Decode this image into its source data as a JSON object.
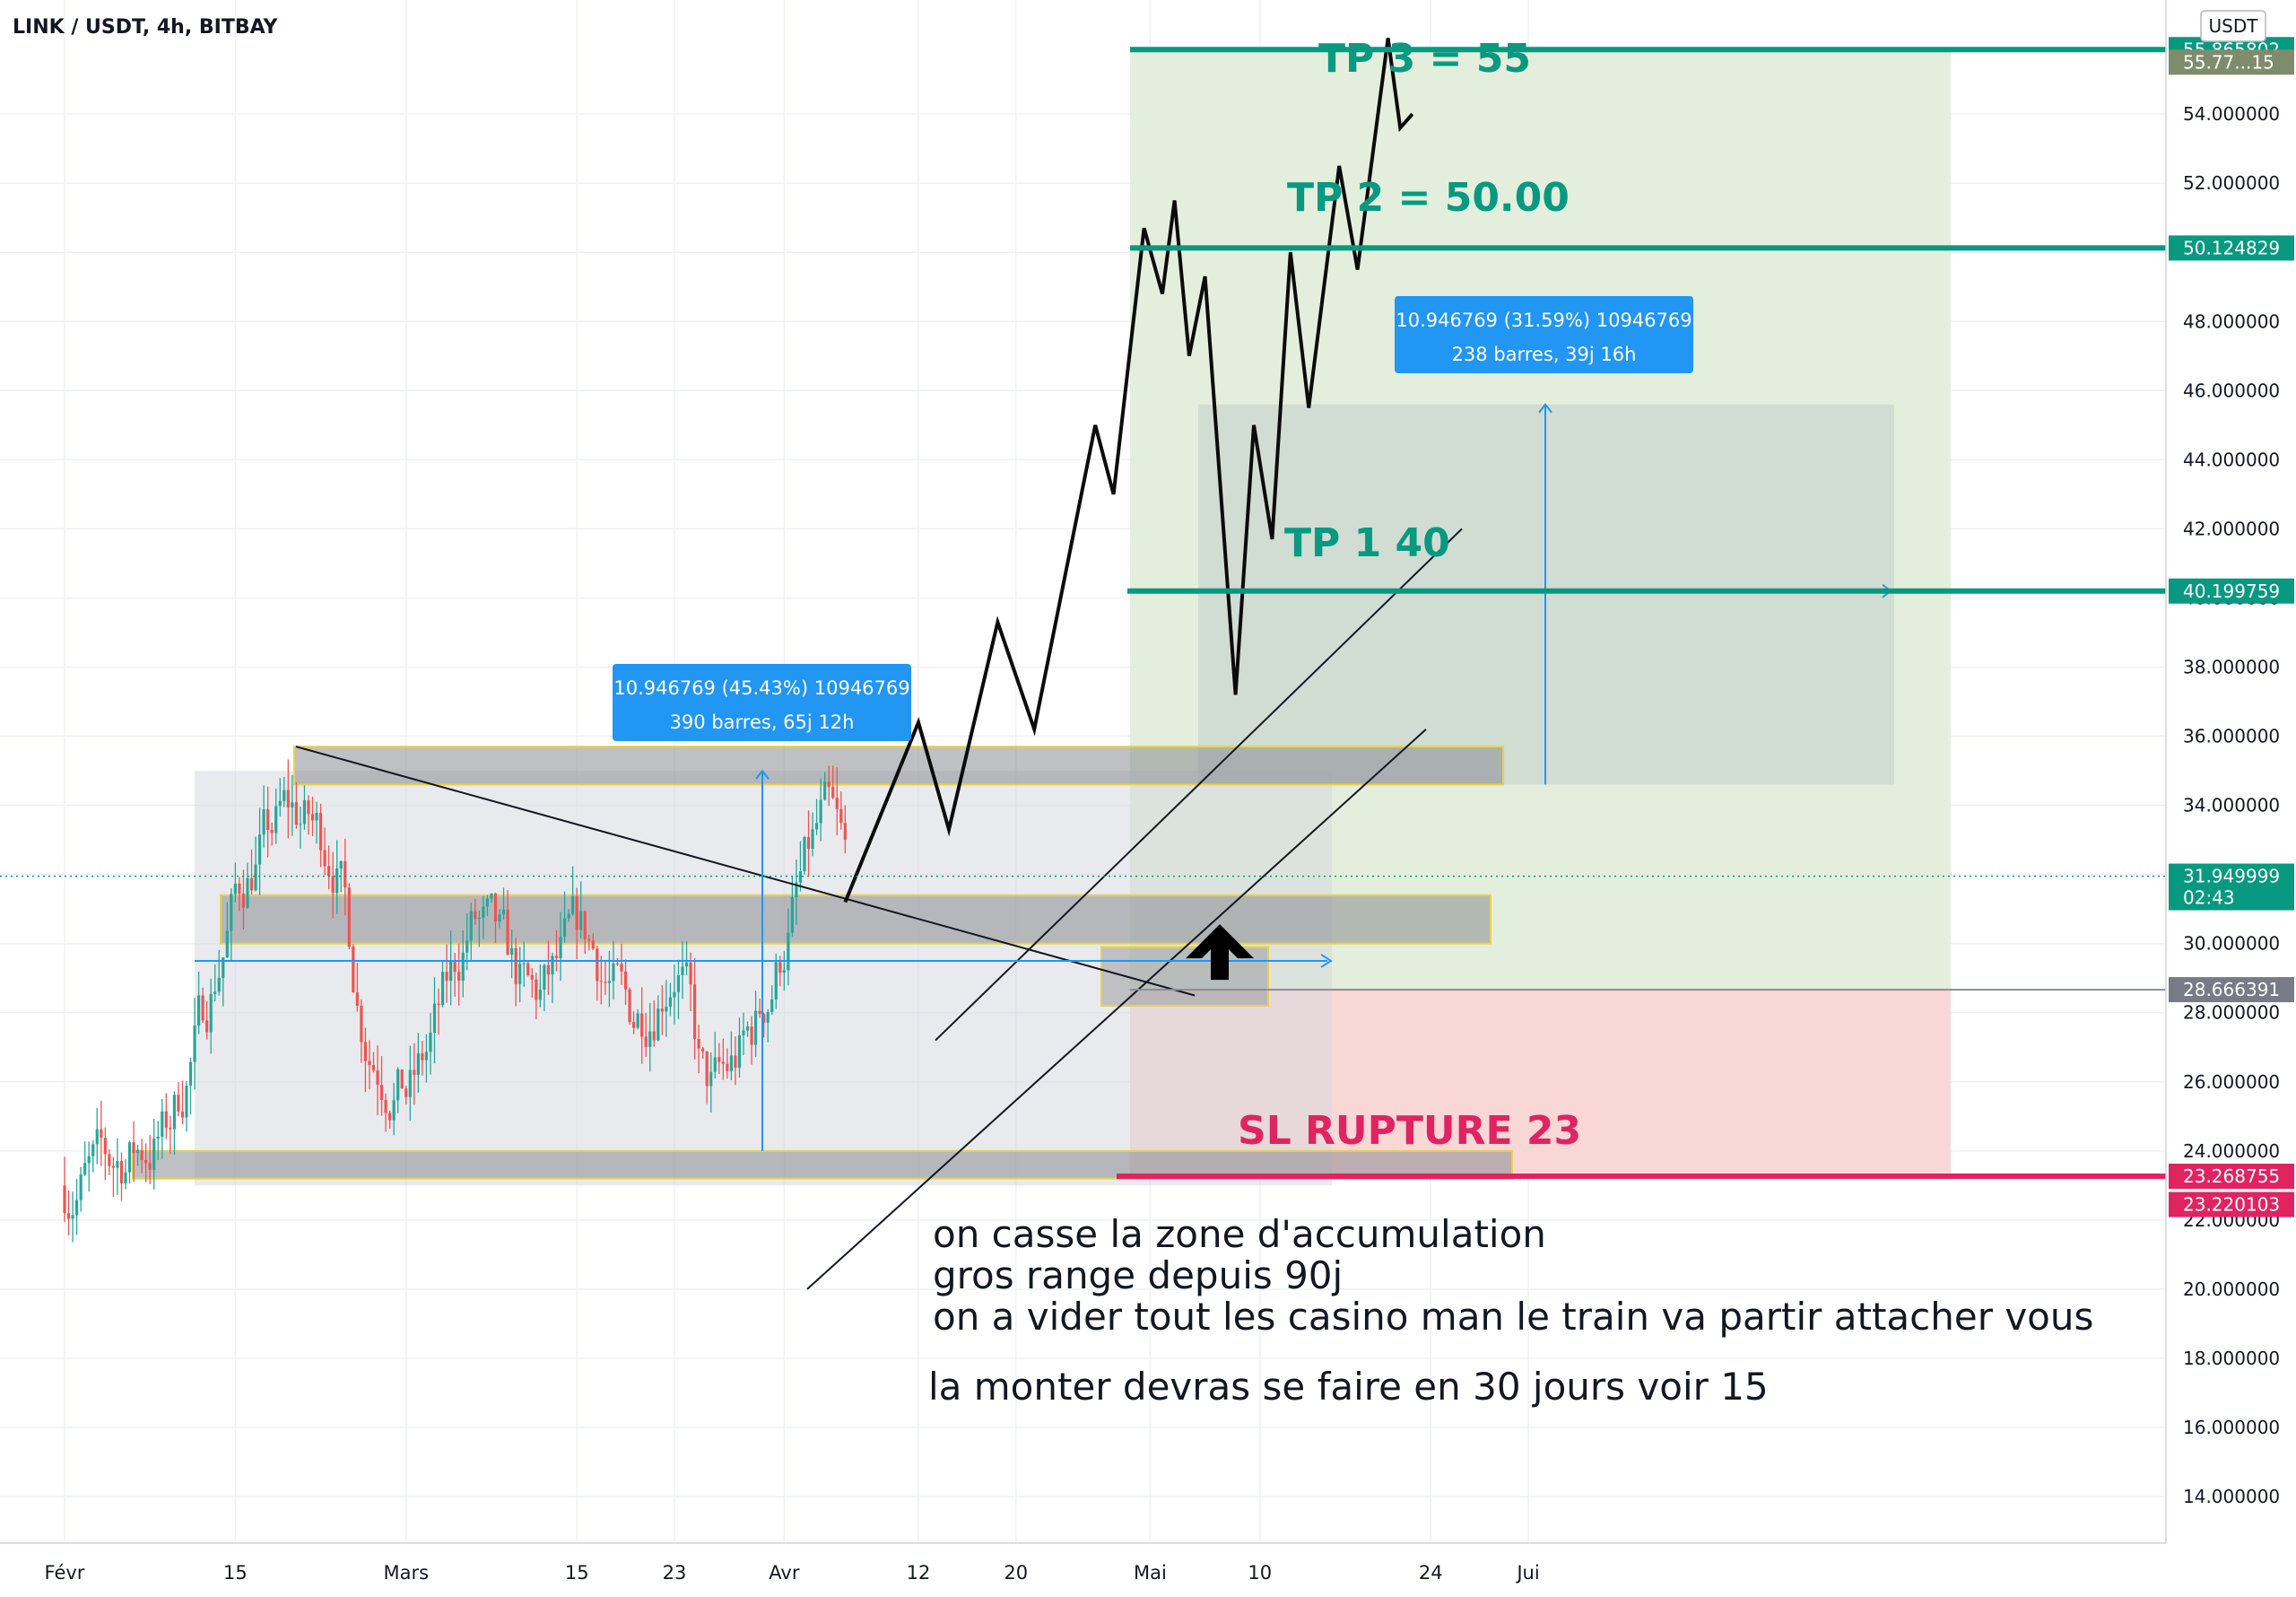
{
  "header": {
    "symbol_title": "LINK / USDT, 4h, BITBAY"
  },
  "currency_badge": "USDT",
  "chart_data": {
    "type": "candlestick",
    "title": "LINK / USDT, 4h, BITBAY",
    "y_axis": {
      "position": "right",
      "ylim": [
        12.6,
        57.3
      ],
      "ticks": [
        "14.000000",
        "16.000000",
        "18.000000",
        "20.000000",
        "22.000000",
        "24.000000",
        "26.000000",
        "28.000000",
        "30.000000",
        "32.000000",
        "34.000000",
        "36.000000",
        "38.000000",
        "40.000000",
        "42.000000",
        "44.000000",
        "46.000000",
        "48.000000",
        "50.000000",
        "52.000000",
        "54.000000"
      ]
    },
    "x_axis": {
      "ticks": [
        {
          "label": "Févr",
          "day": 0
        },
        {
          "label": "15",
          "day": 14
        },
        {
          "label": "Mars",
          "day": 28
        },
        {
          "label": "15",
          "day": 42
        },
        {
          "label": "23",
          "day": 50
        },
        {
          "label": "Avr",
          "day": 59
        },
        {
          "label": "12",
          "day": 70
        },
        {
          "label": "20",
          "day": 78
        },
        {
          "label": "Mai",
          "day": 89
        },
        {
          "label": "10",
          "day": 98
        },
        {
          "label": "24",
          "day": 112
        },
        {
          "label": "Jui",
          "day": 120
        }
      ]
    },
    "price_labels": [
      {
        "value": "55.865802",
        "price": 55.865802,
        "bg": "#089981"
      },
      {
        "value": "55.77...15",
        "price": 55.5,
        "bg": "#7f8c6c"
      },
      {
        "value": "50.124829",
        "price": 50.124829,
        "bg": "#089981"
      },
      {
        "value": "40.199759",
        "price": 40.199759,
        "bg": "#089981"
      },
      {
        "value": "31.949999",
        "price": 31.949999,
        "bg": "#089981",
        "sub": "02:43"
      },
      {
        "value": "28.666391",
        "price": 28.666391,
        "bg": "#787b86"
      },
      {
        "value": "23.268755",
        "price": 23.268755,
        "bg": "#e02460"
      },
      {
        "value": "23.220103",
        "price": 22.45,
        "bg": "#e02460"
      }
    ],
    "levels": [
      {
        "label": "TP 3 = 55",
        "price": 55.865802,
        "color": "#089981"
      },
      {
        "label": "TP 2 = 50.00",
        "price": 50.124829,
        "color": "#089981"
      },
      {
        "label": "TP 1 40",
        "price": 40.199759,
        "color": "#089981"
      },
      {
        "label": "SL RUPTURE 23",
        "price": 23.268755,
        "color": "#e02460"
      }
    ],
    "current_price": 31.949999,
    "candles_ohlc_start_price": 23.0,
    "measurements": [
      {
        "line1": "10.946769 (45.43%) 10946769",
        "line2": "390 barres, 65j 12h"
      },
      {
        "line1": "10.946769 (31.59%) 10946769",
        "line2": "238 barres, 39j 16h"
      }
    ],
    "projection_path": [
      {
        "day": 64.0,
        "price": 31.2
      },
      {
        "day": 70.0,
        "price": 36.4
      },
      {
        "day": 72.5,
        "price": 33.3
      },
      {
        "day": 76.5,
        "price": 39.3
      },
      {
        "day": 79.5,
        "price": 36.2
      },
      {
        "day": 84.5,
        "price": 45.0
      },
      {
        "day": 86.0,
        "price": 43.0
      },
      {
        "day": 88.5,
        "price": 50.7
      },
      {
        "day": 90.0,
        "price": 48.8
      },
      {
        "day": 91.0,
        "price": 51.5
      },
      {
        "day": 92.2,
        "price": 47.0
      },
      {
        "day": 93.5,
        "price": 49.3
      },
      {
        "day": 96.0,
        "price": 37.2
      },
      {
        "day": 97.5,
        "price": 45.0
      },
      {
        "day": 99.0,
        "price": 41.7
      },
      {
        "day": 100.5,
        "price": 50.0
      },
      {
        "day": 102.0,
        "price": 45.5
      },
      {
        "day": 104.5,
        "price": 52.5
      },
      {
        "day": 106.0,
        "price": 49.5
      },
      {
        "day": 108.5,
        "price": 56.2
      },
      {
        "day": 109.5,
        "price": 53.6
      },
      {
        "day": 110.5,
        "price": 54.0
      }
    ]
  },
  "annotations": {
    "line1": "on casse la zone d'accumulation",
    "line2": "gros range depuis 90j",
    "line3": "on a vider tout les casino man le train va partir attacher vous",
    "line4": "la monter devras se faire en 30  jours voir 15"
  }
}
